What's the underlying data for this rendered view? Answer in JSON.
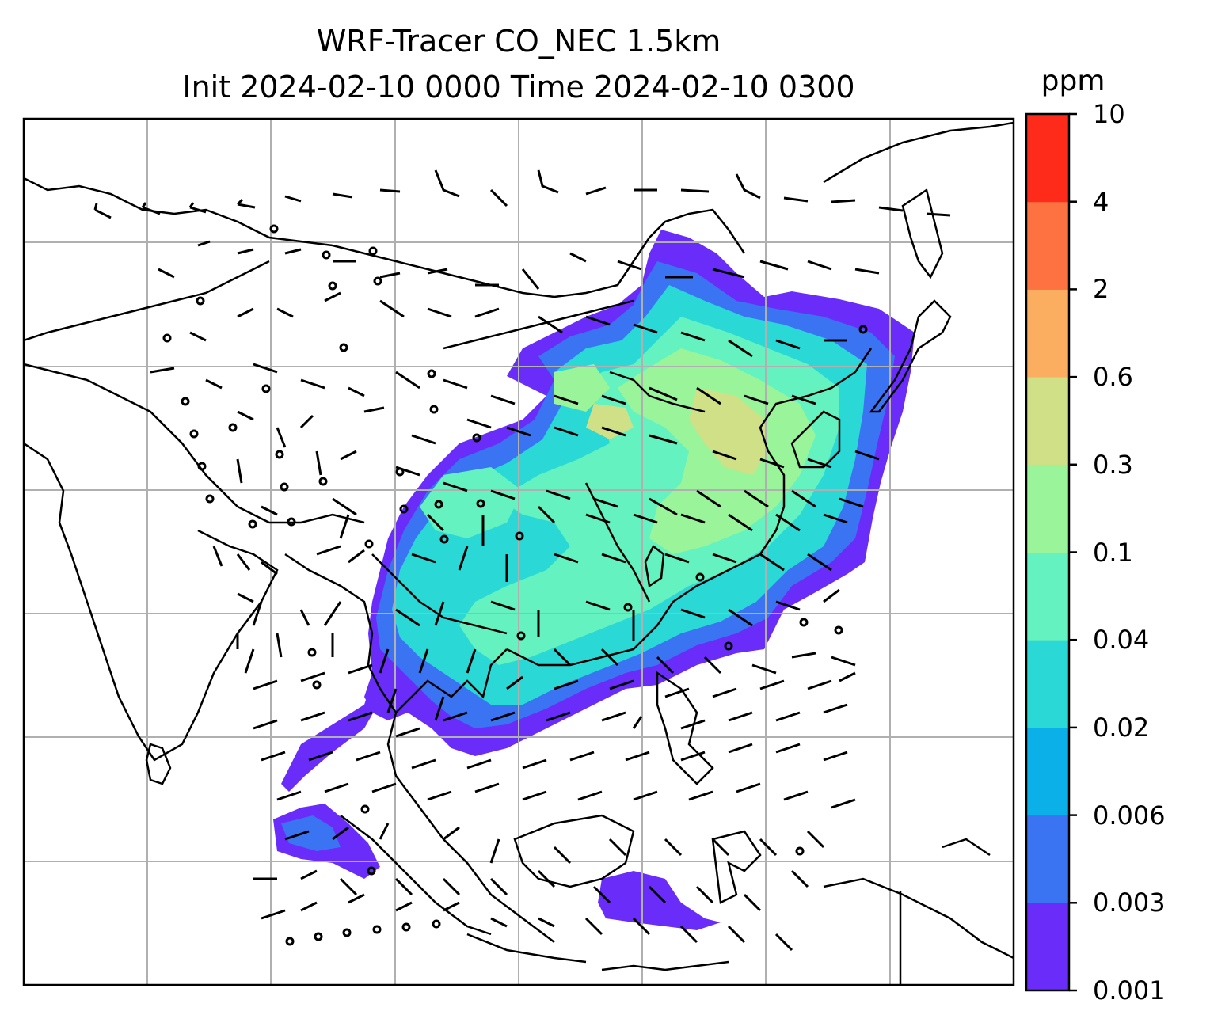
{
  "title_line1": "WRF-Tracer CO_NEC 1.5km",
  "title_line2": "Init 2024-02-10 0000 Time 2024-02-10 0300",
  "colorbar": {
    "unit": "ppm",
    "levels": [
      "0.001",
      "0.003",
      "0.006",
      "0.02",
      "0.04",
      "0.1",
      "0.3",
      "0.6",
      "2",
      "4",
      "10"
    ],
    "colors": [
      "#6a2cf8",
      "#3a74f2",
      "#0cb0e8",
      "#2ad9d6",
      "#64f2c0",
      "#9af59a",
      "#cfe087",
      "#fbad60",
      "#fe7140",
      "#fe2b1a"
    ]
  },
  "map": {
    "gridlines": true,
    "features": [
      "coastlines",
      "country-borders",
      "wind-barbs",
      "co-concentration-fill"
    ]
  }
}
